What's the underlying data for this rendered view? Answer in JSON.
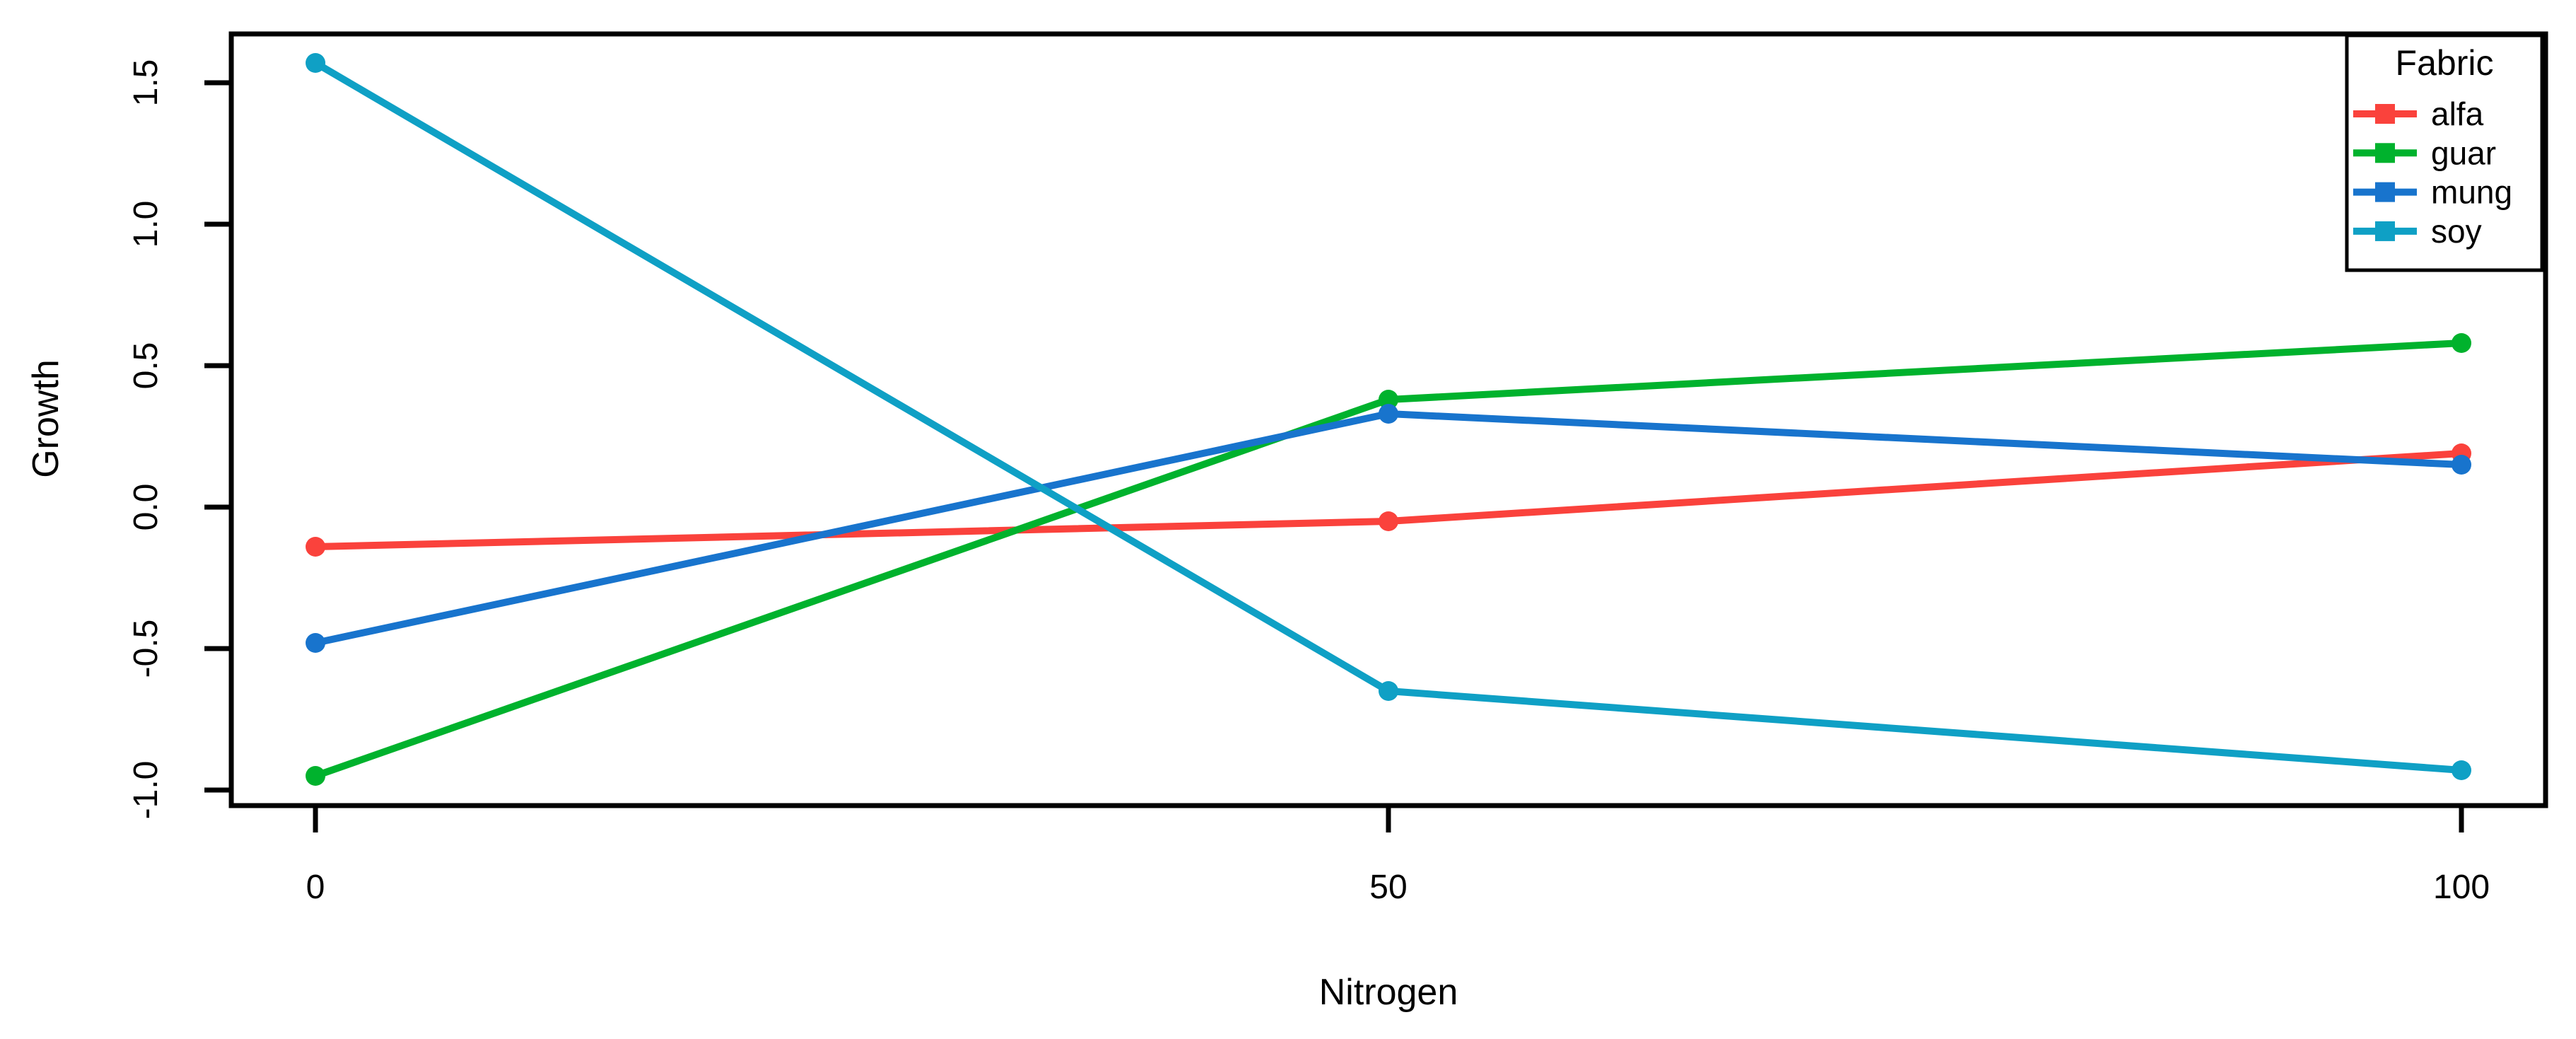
{
  "figure": {
    "background": "#ffffff",
    "axis_color": "#000000",
    "text_color": "#000000"
  },
  "chart_data": {
    "type": "line",
    "title": "",
    "xlabel": "Nitrogen",
    "ylabel": "Growth",
    "x": [
      0,
      50,
      100
    ],
    "x_tick_labels": [
      "0",
      "50",
      "100"
    ],
    "y_ticks": [
      1.5,
      1.0,
      0.5,
      0.0,
      -0.5,
      -1.0
    ],
    "y_tick_labels": [
      "1.5",
      "1.0",
      "0.5",
      "0.0",
      "-0.5",
      "-1.0"
    ],
    "xlim": [
      -4,
      104
    ],
    "ylim": [
      -1.05,
      1.67
    ],
    "grid": false,
    "marker": "point",
    "legend": {
      "title": "Fabric",
      "position": "top-right"
    },
    "series": [
      {
        "name": "alfa",
        "color": "#FA423C",
        "values": [
          -0.14,
          -0.05,
          0.19
        ]
      },
      {
        "name": "guar",
        "color": "#00B22D",
        "values": [
          -0.95,
          0.38,
          0.58
        ]
      },
      {
        "name": "mung",
        "color": "#1874CD",
        "values": [
          -0.48,
          0.33,
          0.15
        ]
      },
      {
        "name": "soy",
        "color": "#0FA0C5",
        "values": [
          1.57,
          -0.65,
          -0.93
        ]
      }
    ]
  }
}
